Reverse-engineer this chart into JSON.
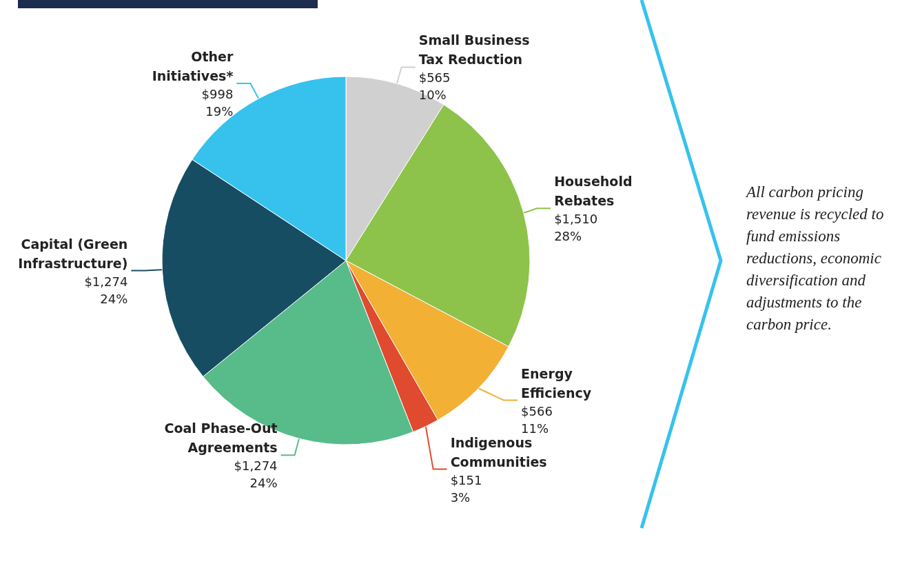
{
  "chart_data": {
    "type": "pie",
    "categories": [
      "Small Business Tax Reduction",
      "Household Rebates",
      "Energy Efficiency",
      "Indigenous Communities",
      "Coal Phase-Out Agreements",
      "Capital (Green Infrastructure)",
      "Other Initiatives*"
    ],
    "values": [
      565,
      1510,
      566,
      151,
      1274,
      1274,
      998
    ],
    "colors": [
      "#d0d0d0",
      "#8dc34a",
      "#f2b035",
      "#e04a2f",
      "#58bb8a",
      "#174d63",
      "#36c2ed"
    ],
    "value_labels": [
      "$565\n10%",
      "$1,510\n28%",
      "$566\n11%",
      "$151\n3%",
      "$1,274\n24%",
      "$1,274\n24%",
      "$998\n19%"
    ],
    "annotations": [
      "All carbon pricing revenue is recycled to fund emissions reductions, economic diversification and adjustments to the carbon price."
    ],
    "legend": false
  }
}
